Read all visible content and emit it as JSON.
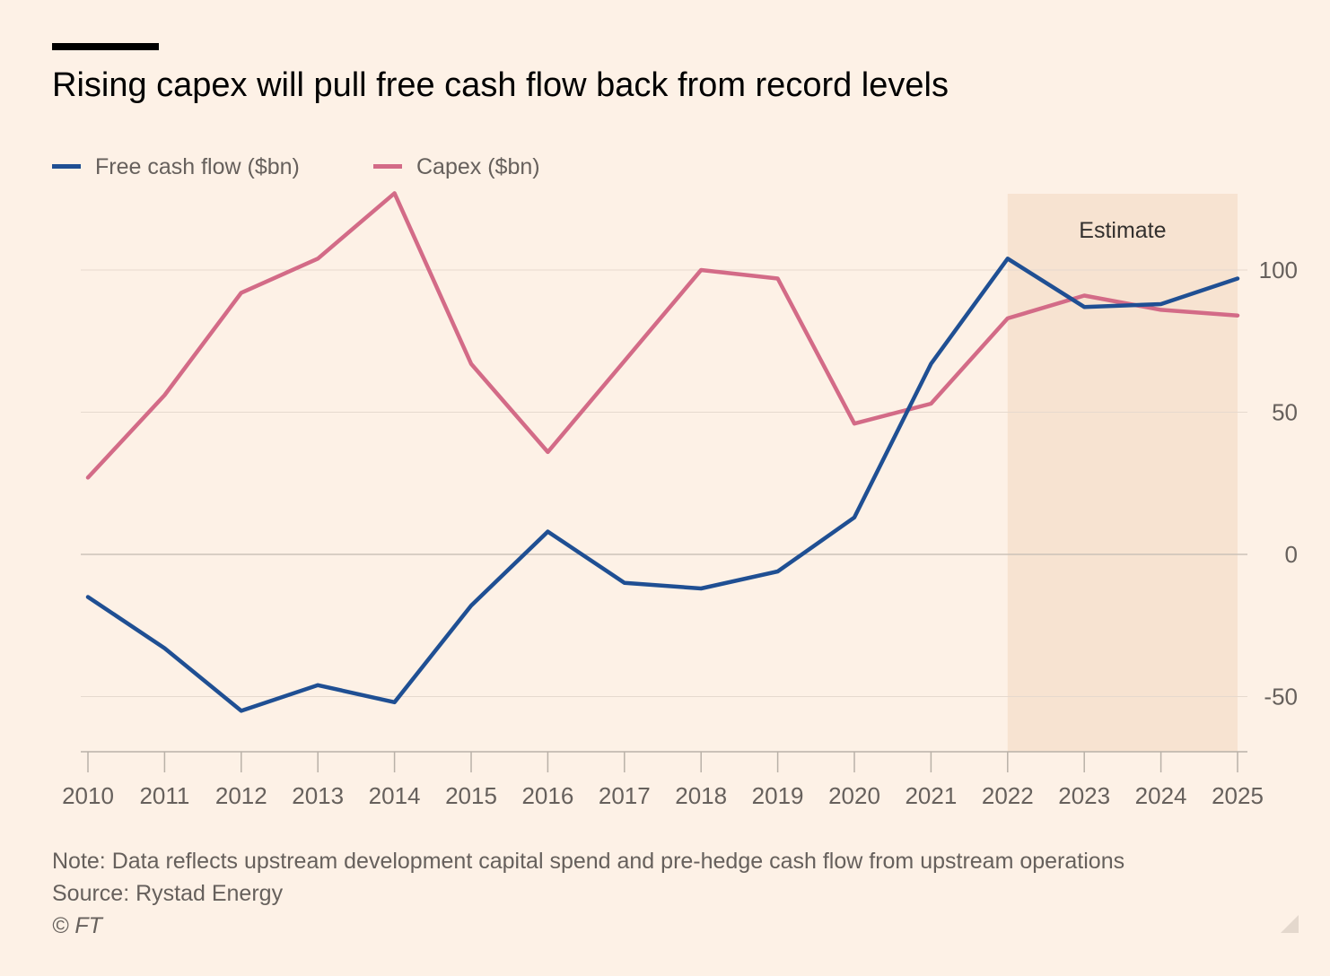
{
  "title": "Rising capex will pull free cash flow back from record levels",
  "legend": [
    {
      "label": "Free cash flow ($bn)",
      "color": "#1f4f93"
    },
    {
      "label": "Capex ($bn)",
      "color": "#d36b87"
    }
  ],
  "chart_data": {
    "type": "line",
    "title": "Rising capex will pull free cash flow back from record levels",
    "xlabel": "",
    "ylabel": "",
    "x": [
      2010,
      2011,
      2012,
      2013,
      2014,
      2015,
      2016,
      2017,
      2018,
      2019,
      2020,
      2021,
      2022,
      2023,
      2024,
      2025
    ],
    "series": [
      {
        "name": "Free cash flow ($bn)",
        "color": "#1f4f93",
        "values": [
          -15,
          -33,
          -55,
          -46,
          -52,
          -18,
          8,
          -10,
          -12,
          -6,
          13,
          67,
          104,
          87,
          88,
          97
        ]
      },
      {
        "name": "Capex ($bn)",
        "color": "#d36b87",
        "values": [
          27,
          56,
          92,
          104,
          127,
          67,
          36,
          68,
          100,
          97,
          46,
          53,
          83,
          91,
          86,
          84
        ]
      }
    ],
    "xlim": [
      2010,
      2025
    ],
    "ylim": [
      -70,
      127
    ],
    "yticks": [
      100,
      50,
      0,
      -50
    ],
    "ytick_labels": [
      "100",
      "50",
      "0",
      "-50"
    ],
    "xticks": [
      "2010",
      "2011",
      "2012",
      "2013",
      "2014",
      "2015",
      "2016",
      "2017",
      "2018",
      "2019",
      "2020",
      "2021",
      "2022",
      "2023",
      "2024",
      "2025"
    ],
    "yaxis_side": "right",
    "grid": true,
    "legend_position": "top-left",
    "shaded_region": {
      "from": 2022,
      "to": 2025,
      "label": "Estimate",
      "color": "#f7e3d1"
    }
  },
  "footer": {
    "note": "Note: Data reflects upstream development capital spend and pre-hedge cash flow from upstream operations",
    "source": "Source: Rystad Energy",
    "copyright": "© FT"
  },
  "colors": {
    "background": "#fdf1e6",
    "gridline": "#e6d9ce",
    "axis": "#b9b1a8",
    "text": "#66605c"
  }
}
